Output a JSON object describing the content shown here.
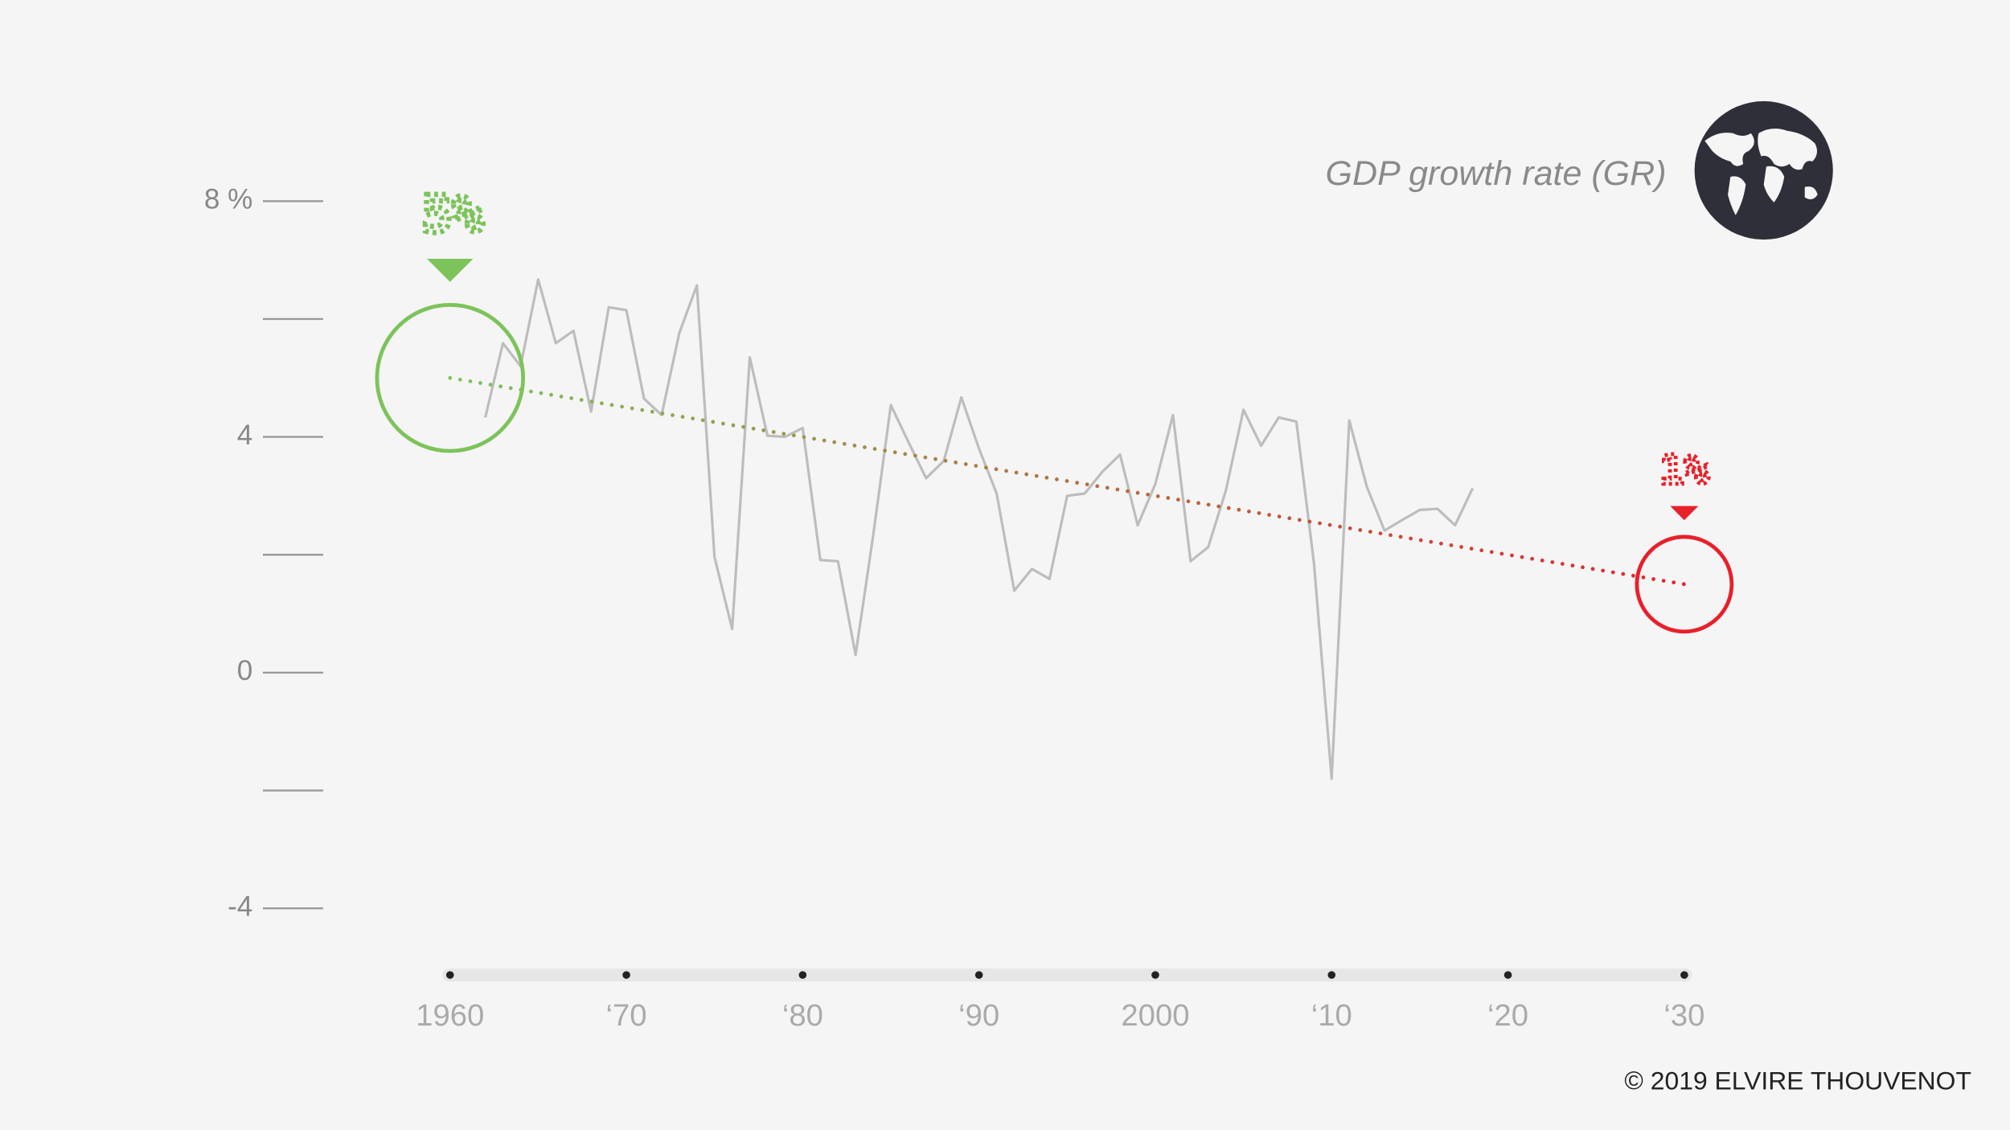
{
  "chart_data": {
    "type": "line",
    "title": "GDP growth rate (GR)",
    "credit": "© 2019 ELVIRE THOUVENOT",
    "x": [
      1962,
      1963,
      1964,
      1965,
      1966,
      1967,
      1968,
      1969,
      1970,
      1971,
      1972,
      1973,
      1974,
      1975,
      1976,
      1977,
      1978,
      1979,
      1980,
      1981,
      1982,
      1983,
      1984,
      1985,
      1986,
      1987,
      1988,
      1989,
      1990,
      1991,
      1992,
      1993,
      1994,
      1995,
      1996,
      1997,
      1998,
      1999,
      2000,
      2001,
      2002,
      2003,
      2004,
      2005,
      2006,
      2007,
      2008,
      2009,
      2010,
      2011,
      2012,
      2013,
      2014,
      2015,
      2016,
      2017,
      2018
    ],
    "series": [
      {
        "color": "#bdbdbd",
        "values": [
          4.33,
          5.59,
          5.2,
          6.67,
          5.59,
          5.8,
          4.43,
          6.2,
          6.15,
          4.65,
          4.37,
          5.76,
          6.57,
          1.96,
          0.74,
          5.35,
          4.02,
          4.0,
          4.15,
          1.91,
          1.89,
          0.3,
          2.33,
          4.54,
          3.91,
          3.3,
          3.59,
          4.67,
          3.8,
          3.04,
          1.39,
          1.76,
          1.59,
          3.0,
          3.04,
          3.41,
          3.7,
          2.5,
          3.2,
          4.37,
          1.89,
          2.13,
          3.09,
          4.46,
          3.85,
          4.33,
          4.26,
          1.85,
          -1.8,
          4.28,
          3.15,
          2.41,
          2.59,
          2.76,
          2.78,
          2.5,
          3.13
        ]
      }
    ],
    "trend": {
      "x": [
        1960,
        2030
      ],
      "values": [
        5,
        1.5
      ]
    },
    "annotations": [
      "5%",
      "1%"
    ],
    "start_color": "#7dc35b",
    "end_color": "#e8202a",
    "xlim": [
      1960,
      2030
    ],
    "xticks": [
      1960,
      {
        "value": 1970,
        "label": "‘70"
      },
      {
        "value": 1980,
        "label": "‘80"
      },
      {
        "value": 1990,
        "label": "‘90"
      },
      2000,
      {
        "value": 2010,
        "label": "‘10"
      },
      {
        "value": 2020,
        "label": "‘20"
      },
      {
        "value": 2030,
        "label": "‘30"
      }
    ],
    "ylim": [
      -4,
      8
    ],
    "yticks": [
      {
        "value": 8,
        "label": "8 %"
      },
      4,
      0,
      -4
    ],
    "minor_yticks": [
      6,
      2,
      -2
    ]
  }
}
